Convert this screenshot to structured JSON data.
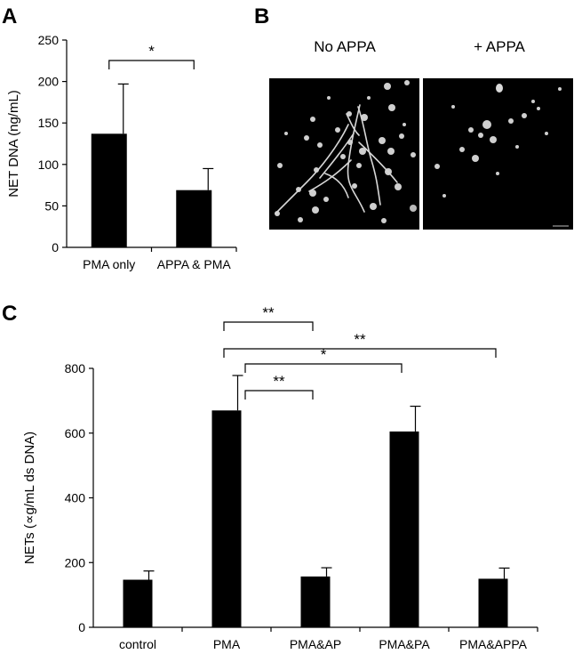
{
  "panels": {
    "a": "A",
    "b": "B",
    "c": "C"
  },
  "microscopy": {
    "left_label": "No APPA",
    "right_label": "+ APPA"
  },
  "chart_data": [
    {
      "panel": "A",
      "type": "bar",
      "categories": [
        "PMA only",
        "APPA & PMA"
      ],
      "values": [
        137,
        69
      ],
      "errors": [
        60,
        26
      ],
      "title": "",
      "xlabel": "",
      "ylabel": "NET DNA (ng/mL)",
      "ylim": [
        0,
        250
      ],
      "yticks": [
        0,
        50,
        100,
        150,
        200,
        250
      ],
      "bar_color": "#000000",
      "grid": false,
      "significance": [
        {
          "from": 0,
          "to": 1,
          "label": "*"
        }
      ]
    },
    {
      "panel": "C",
      "type": "bar",
      "categories": [
        "control",
        "PMA",
        "PMA&AP",
        "PMA&PA",
        "PMA&APPA"
      ],
      "values": [
        147,
        670,
        157,
        605,
        150
      ],
      "errors": [
        27,
        108,
        27,
        78,
        33
      ],
      "title": "",
      "xlabel": "",
      "ylabel": "NETs (∝g/mL ds DNA)",
      "ylim": [
        0,
        800
      ],
      "yticks": [
        0,
        200,
        400,
        600,
        800
      ],
      "bar_color": "#000000",
      "grid": false,
      "significance": [
        {
          "from": 1,
          "to": 2,
          "label": "**"
        },
        {
          "from": 1,
          "to": 4,
          "label": "**"
        },
        {
          "from": 1,
          "to": 3,
          "label": "*"
        },
        {
          "from": 1,
          "to": 2,
          "label": "**"
        }
      ]
    }
  ]
}
